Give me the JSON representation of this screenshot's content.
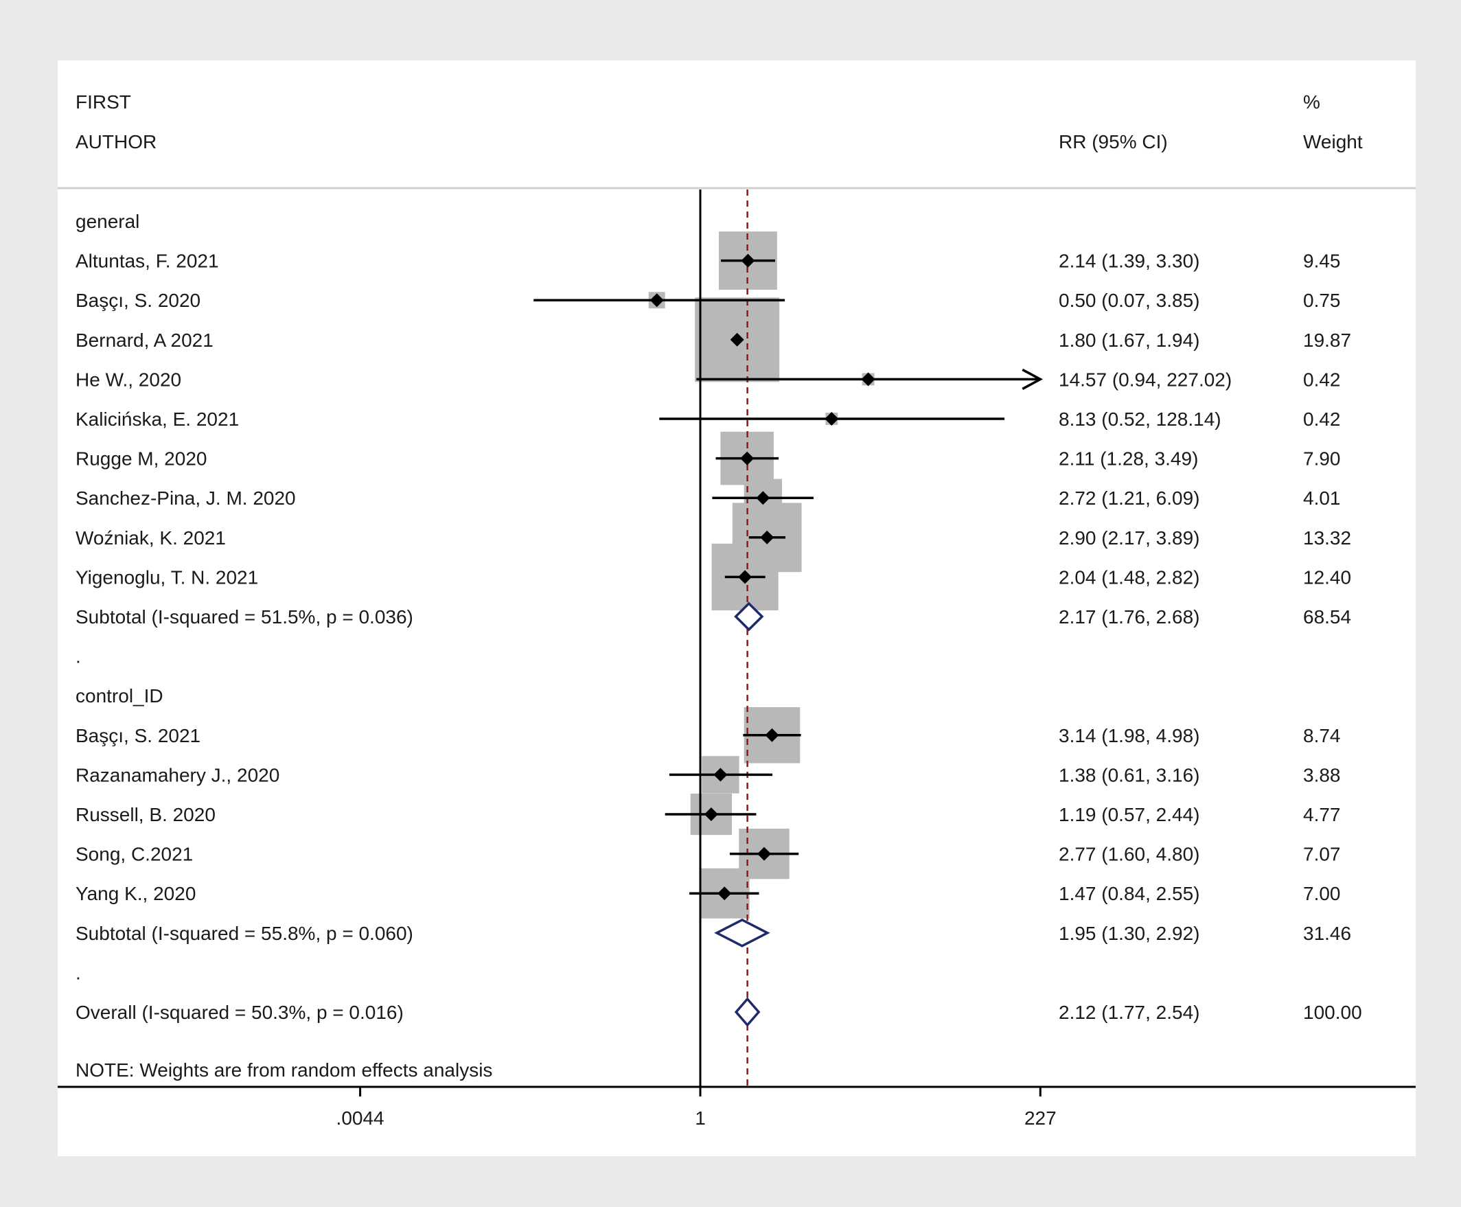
{
  "header": {
    "col1_line1": "FIRST",
    "col1_line2": "AUTHOR",
    "col2": "RR (95% CI)",
    "col3_line1": "%",
    "col3_line2": "Weight"
  },
  "colors": {
    "background": "#eaeaea",
    "panel": "#ffffff",
    "box": "#b8b8b8",
    "point": "#000000",
    "diamond": "#1f2a6b",
    "reference_line": "#8b1a1a"
  },
  "chart_data": {
    "type": "forest",
    "measure": "RR",
    "x_scale": "log",
    "xlim": [
      0.0044,
      227
    ],
    "xticks": [
      {
        "value": 0.0044,
        "label": ".0044"
      },
      {
        "value": 1,
        "label": "1"
      },
      {
        "value": 227,
        "label": "227"
      }
    ],
    "null_line": 1,
    "overall_line": 2.12,
    "note": "NOTE: Weights are from random effects analysis",
    "rows": [
      {
        "kind": "group",
        "label": "general"
      },
      {
        "kind": "study",
        "label": "Altuntas, F. 2021",
        "est": 2.14,
        "lo": 1.39,
        "hi": 3.3,
        "ci": "2.14 (1.39, 3.30)",
        "weight": 9.45,
        "weight_text": "9.45"
      },
      {
        "kind": "study",
        "label": "Başçı, S. 2020",
        "est": 0.5,
        "lo": 0.07,
        "hi": 3.85,
        "ci": "0.50 (0.07, 3.85)",
        "weight": 0.75,
        "weight_text": "0.75"
      },
      {
        "kind": "study",
        "label": "Bernard, A 2021",
        "est": 1.8,
        "lo": 1.67,
        "hi": 1.94,
        "ci": "1.80 (1.67, 1.94)",
        "weight": 19.87,
        "weight_text": "19.87"
      },
      {
        "kind": "study",
        "label": "He W., 2020",
        "est": 14.57,
        "lo": 0.94,
        "hi": 227.02,
        "ci": "14.57 (0.94, 227.02)",
        "weight": 0.42,
        "weight_text": "0.42",
        "arrow_right": true
      },
      {
        "kind": "study",
        "label": "Kalicińska, E. 2021",
        "est": 8.13,
        "lo": 0.52,
        "hi": 128.14,
        "ci": "8.13 (0.52, 128.14)",
        "weight": 0.42,
        "weight_text": "0.42"
      },
      {
        "kind": "study",
        "label": "Rugge M, 2020",
        "est": 2.11,
        "lo": 1.28,
        "hi": 3.49,
        "ci": "2.11 (1.28, 3.49)",
        "weight": 7.9,
        "weight_text": "7.90"
      },
      {
        "kind": "study",
        "label": "Sanchez-Pina, J. M. 2020",
        "est": 2.72,
        "lo": 1.21,
        "hi": 6.09,
        "ci": "2.72 (1.21, 6.09)",
        "weight": 4.01,
        "weight_text": "4.01"
      },
      {
        "kind": "study",
        "label": "Woźniak, K. 2021",
        "est": 2.9,
        "lo": 2.17,
        "hi": 3.89,
        "ci": "2.90 (2.17, 3.89)",
        "weight": 13.32,
        "weight_text": "13.32"
      },
      {
        "kind": "study",
        "label": "Yigenoglu, T. N. 2021",
        "est": 2.04,
        "lo": 1.48,
        "hi": 2.82,
        "ci": "2.04 (1.48, 2.82)",
        "weight": 12.4,
        "weight_text": "12.40"
      },
      {
        "kind": "subtotal",
        "label": "Subtotal  (I-squared = 51.5%, p = 0.036)",
        "est": 2.17,
        "lo": 1.76,
        "hi": 2.68,
        "ci": "2.17 (1.76, 2.68)",
        "weight": 68.54,
        "weight_text": "68.54"
      },
      {
        "kind": "spacer",
        "label": "."
      },
      {
        "kind": "group",
        "label": "control_ID"
      },
      {
        "kind": "study",
        "label": "Başçı, S. 2021",
        "est": 3.14,
        "lo": 1.98,
        "hi": 4.98,
        "ci": "3.14 (1.98, 4.98)",
        "weight": 8.74,
        "weight_text": "8.74"
      },
      {
        "kind": "study",
        "label": "Razanamahery J., 2020",
        "est": 1.38,
        "lo": 0.61,
        "hi": 3.16,
        "ci": "1.38 (0.61, 3.16)",
        "weight": 3.88,
        "weight_text": "3.88"
      },
      {
        "kind": "study",
        "label": "Russell, B. 2020",
        "est": 1.19,
        "lo": 0.57,
        "hi": 2.44,
        "ci": "1.19 (0.57, 2.44)",
        "weight": 4.77,
        "weight_text": "4.77"
      },
      {
        "kind": "study",
        "label": "Song, C.2021",
        "est": 2.77,
        "lo": 1.6,
        "hi": 4.8,
        "ci": "2.77 (1.60, 4.80)",
        "weight": 7.07,
        "weight_text": "7.07"
      },
      {
        "kind": "study",
        "label": "Yang K., 2020",
        "est": 1.47,
        "lo": 0.84,
        "hi": 2.55,
        "ci": "1.47 (0.84, 2.55)",
        "weight": 7.0,
        "weight_text": "7.00"
      },
      {
        "kind": "subtotal",
        "label": "Subtotal  (I-squared = 55.8%, p = 0.060)",
        "est": 1.95,
        "lo": 1.3,
        "hi": 2.92,
        "ci": "1.95 (1.30, 2.92)",
        "weight": 31.46,
        "weight_text": "31.46"
      },
      {
        "kind": "spacer",
        "label": "."
      },
      {
        "kind": "overall",
        "label": "Overall  (I-squared = 50.3%, p = 0.016)",
        "est": 2.12,
        "lo": 1.77,
        "hi": 2.54,
        "ci": "2.12 (1.77, 2.54)",
        "weight": 100.0,
        "weight_text": "100.00"
      }
    ]
  }
}
